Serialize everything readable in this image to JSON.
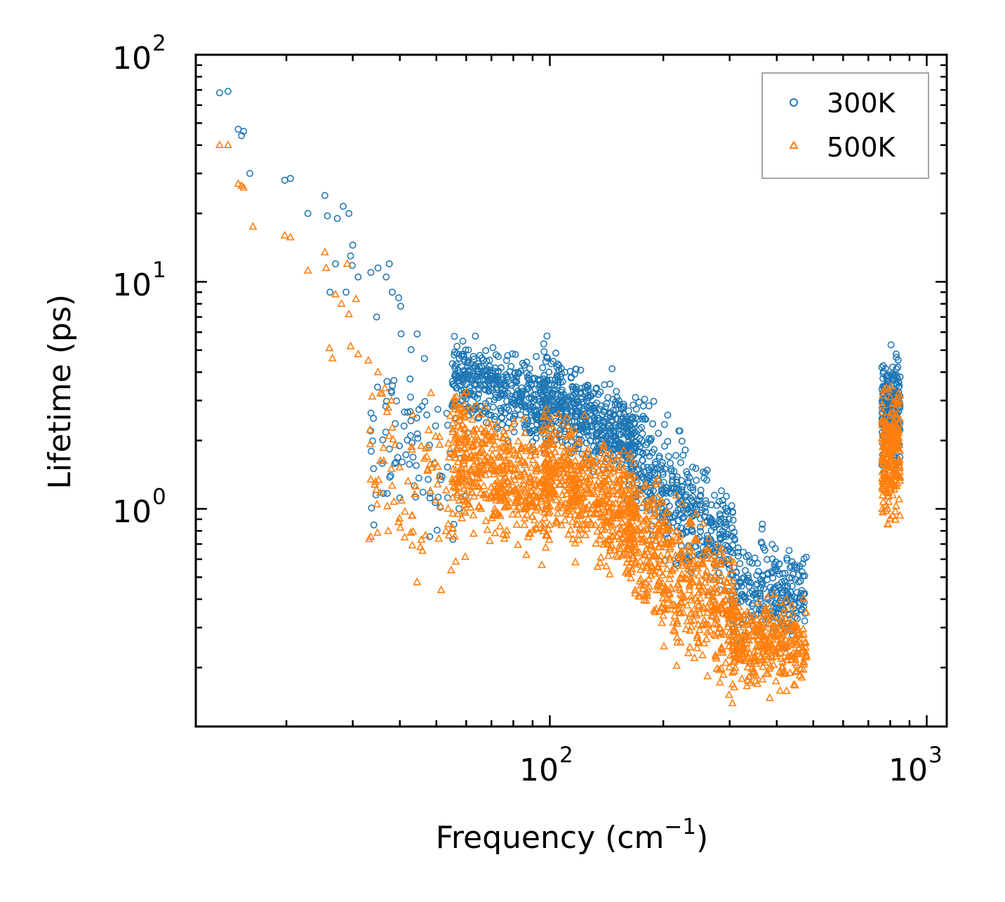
{
  "chart_data": {
    "type": "scatter",
    "title": "",
    "xlabel": "Frequency (cm",
    "xlabel_sup": "−1",
    "xlabel_close": ")",
    "ylabel": "Lifetime (ps)",
    "x_scale": "log",
    "y_scale": "log",
    "xlim": [
      11.5,
      1130
    ],
    "ylim": [
      0.11,
      100
    ],
    "x_major_ticks": [
      {
        "value": 100,
        "base": "10",
        "exp": "2"
      },
      {
        "value": 1000,
        "base": "10",
        "exp": "3"
      }
    ],
    "y_major_ticks": [
      {
        "value": 1,
        "base": "10",
        "exp": "0"
      },
      {
        "value": 10,
        "base": "10",
        "exp": "1"
      },
      {
        "value": 100,
        "base": "10",
        "exp": "2"
      }
    ],
    "legend": {
      "position": "top-right",
      "entries": [
        {
          "label": "300K",
          "marker": "circle",
          "color": "#1f77b4"
        },
        {
          "label": "500K",
          "marker": "triangle",
          "color": "#ff7f0e"
        }
      ]
    },
    "series": [
      {
        "name": "300K",
        "marker": "circle",
        "color": "#1f77b4",
        "points": [
          [
            13.3,
            68
          ],
          [
            14.0,
            69
          ],
          [
            14.9,
            47
          ],
          [
            15.2,
            44
          ],
          [
            15.4,
            46
          ],
          [
            16.0,
            30
          ],
          [
            19.8,
            28
          ],
          [
            20.5,
            28.5
          ],
          [
            22.8,
            20
          ],
          [
            25.3,
            24
          ],
          [
            25.7,
            19.5
          ],
          [
            27.3,
            19
          ],
          [
            28.3,
            21.5
          ],
          [
            29.3,
            20
          ],
          [
            30.0,
            14.5
          ],
          [
            26.1,
            9
          ],
          [
            27.0,
            12
          ],
          [
            28.8,
            9
          ],
          [
            29.6,
            13
          ],
          [
            29.9,
            11.8
          ],
          [
            31.0,
            10.5
          ],
          [
            33.5,
            11
          ],
          [
            35.0,
            11.5
          ],
          [
            36.8,
            10.5
          ],
          [
            37.5,
            12
          ],
          [
            38.2,
            9
          ],
          [
            39.7,
            8.5
          ],
          [
            40.2,
            7.8
          ],
          [
            34.7,
            7
          ],
          [
            40.3,
            5.9
          ]
        ],
        "clusters": [
          {
            "f_min": 33,
            "f_max": 60,
            "tau_log_min": -0.3,
            "tau_log_max": 0.85,
            "n": 90,
            "slope": -0.55
          },
          {
            "f_min": 55,
            "f_max": 100,
            "tau_log_min": 0.25,
            "tau_log_max": 0.78,
            "n": 420,
            "slope": -0.6
          },
          {
            "f_min": 95,
            "f_max": 170,
            "tau_log_min": 0.12,
            "tau_log_max": 0.68,
            "n": 480,
            "slope": -0.9
          },
          {
            "f_min": 160,
            "f_max": 310,
            "tau_log_min": -0.38,
            "tau_log_max": 0.45,
            "n": 420,
            "slope": -1.6
          },
          {
            "f_min": 305,
            "f_max": 480,
            "tau_log_min": -0.68,
            "tau_log_max": -0.04,
            "n": 260,
            "slope": -0.15
          },
          {
            "f_min": 760,
            "f_max": 850,
            "tau_log_min": 0.1,
            "tau_log_max": 0.77,
            "n": 240,
            "slope": 0.0
          }
        ]
      },
      {
        "name": "500K",
        "marker": "triangle",
        "color": "#ff7f0e",
        "points": [
          [
            13.3,
            40
          ],
          [
            14.0,
            40
          ],
          [
            14.9,
            27
          ],
          [
            15.2,
            26.5
          ],
          [
            15.4,
            26
          ],
          [
            16.3,
            17.5
          ],
          [
            19.8,
            16
          ],
          [
            20.5,
            15.7
          ],
          [
            22.8,
            11.2
          ],
          [
            25.3,
            13.5
          ],
          [
            25.5,
            11.5
          ],
          [
            26.0,
            5.1
          ],
          [
            26.5,
            4.6
          ],
          [
            27.0,
            8.8
          ],
          [
            28.0,
            8
          ],
          [
            29.0,
            12
          ],
          [
            29.3,
            7.2
          ],
          [
            29.6,
            5.2
          ],
          [
            30.6,
            8.4
          ],
          [
            31.0,
            4.8
          ],
          [
            33.0,
            4.5
          ],
          [
            35.0,
            4
          ],
          [
            36.5,
            3.4
          ],
          [
            38.0,
            3
          ]
        ],
        "clusters": [
          {
            "f_min": 33,
            "f_max": 60,
            "tau_log_min": -0.5,
            "tau_log_max": 0.7,
            "n": 100,
            "slope": -0.6
          },
          {
            "f_min": 55,
            "f_max": 100,
            "tau_log_min": -0.25,
            "tau_log_max": 0.55,
            "n": 480,
            "slope": -0.85
          },
          {
            "f_min": 95,
            "f_max": 170,
            "tau_log_min": -0.3,
            "tau_log_max": 0.45,
            "n": 540,
            "slope": -0.9
          },
          {
            "f_min": 160,
            "f_max": 310,
            "tau_log_min": -0.78,
            "tau_log_max": 0.2,
            "n": 520,
            "slope": -1.5
          },
          {
            "f_min": 305,
            "f_max": 480,
            "tau_log_min": -0.88,
            "tau_log_max": -0.3,
            "n": 320,
            "slope": -0.1
          },
          {
            "f_min": 760,
            "f_max": 850,
            "tau_log_min": -0.18,
            "tau_log_max": 0.65,
            "n": 240,
            "slope": 0.0
          }
        ]
      }
    ]
  }
}
